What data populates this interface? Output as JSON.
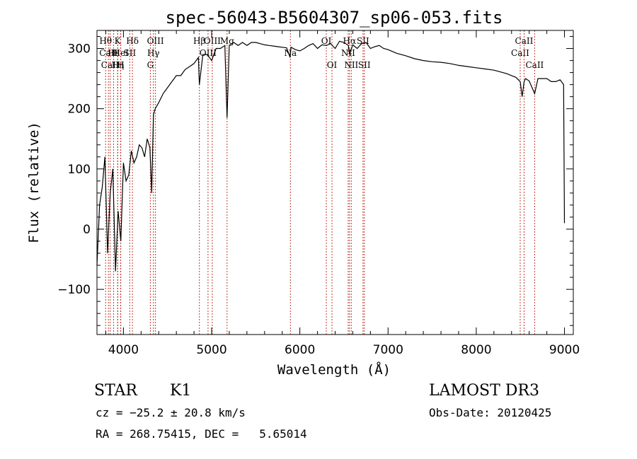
{
  "chart_data": {
    "type": "line",
    "title": "spec-56043-B5604307_sp06-053.fits",
    "xlabel": "Wavelength (Å)",
    "ylabel": "Flux (relative)",
    "xlim": [
      3700,
      9100
    ],
    "ylim": [
      -175,
      330
    ],
    "xticks": [
      4000,
      5000,
      6000,
      7000,
      8000,
      9000
    ],
    "yticks": [
      -100,
      0,
      100,
      200,
      300
    ],
    "series": [
      {
        "name": "flux",
        "x": [
          3700,
          3730,
          3760,
          3790,
          3820,
          3850,
          3880,
          3910,
          3940,
          3970,
          4000,
          4030,
          4060,
          4090,
          4120,
          4150,
          4180,
          4210,
          4240,
          4270,
          4300,
          4320,
          4340,
          4360,
          4400,
          4450,
          4500,
          4550,
          4600,
          4650,
          4700,
          4750,
          4800,
          4850,
          4861,
          4900,
          4950,
          5000,
          5050,
          5100,
          5150,
          5175,
          5200,
          5250,
          5300,
          5350,
          5400,
          5450,
          5500,
          5550,
          5600,
          5650,
          5700,
          5750,
          5800,
          5850,
          5890,
          5900,
          5950,
          6000,
          6050,
          6100,
          6150,
          6200,
          6250,
          6300,
          6350,
          6400,
          6450,
          6500,
          6550,
          6563,
          6600,
          6650,
          6700,
          6750,
          6800,
          6850,
          6900,
          6950,
          7000,
          7100,
          7200,
          7300,
          7400,
          7500,
          7600,
          7700,
          7800,
          7900,
          8000,
          8100,
          8200,
          8300,
          8350,
          8400,
          8450,
          8498,
          8520,
          8542,
          8560,
          8600,
          8662,
          8700,
          8750,
          8800,
          8850,
          8900,
          8950,
          8990,
          9000
        ],
        "y": [
          -60,
          40,
          70,
          120,
          -40,
          60,
          100,
          -70,
          30,
          -20,
          110,
          80,
          90,
          130,
          110,
          120,
          140,
          135,
          120,
          150,
          135,
          60,
          190,
          200,
          210,
          225,
          235,
          245,
          255,
          255,
          265,
          270,
          275,
          285,
          240,
          290,
          290,
          280,
          300,
          300,
          305,
          185,
          305,
          310,
          305,
          310,
          305,
          310,
          310,
          308,
          306,
          305,
          304,
          303,
          302,
          301,
          285,
          302,
          298,
          296,
          300,
          305,
          308,
          300,
          306,
          305,
          308,
          300,
          312,
          310,
          305,
          290,
          306,
          300,
          308,
          310,
          300,
          303,
          305,
          300,
          298,
          292,
          288,
          283,
          280,
          278,
          277,
          275,
          272,
          270,
          268,
          266,
          264,
          260,
          258,
          255,
          252,
          245,
          220,
          245,
          250,
          246,
          225,
          250,
          250,
          250,
          245,
          245,
          248,
          240,
          10
        ]
      }
    ],
    "lines": [
      {
        "name": "Hθ",
        "x": 3798,
        "row": 0
      },
      {
        "name": "CaII",
        "x": 3830,
        "row": 1
      },
      {
        "name": "CaII",
        "x": 3850,
        "row": 2
      },
      {
        "name": "Hε",
        "x": 3889,
        "row": 1
      },
      {
        "name": "K",
        "x": 3934,
        "row": 0
      },
      {
        "name": "Hη",
        "x": 3936,
        "row": 2
      },
      {
        "name": "HeI",
        "x": 3970,
        "row": 1
      },
      {
        "name": "H",
        "x": 3968,
        "row": 2
      },
      {
        "name": "SII",
        "x": 4072,
        "row": 1
      },
      {
        "name": "Hδ",
        "x": 4102,
        "row": 0
      },
      {
        "name": "OIII",
        "x": 4363,
        "row": 0
      },
      {
        "name": "Hγ",
        "x": 4340,
        "row": 1
      },
      {
        "name": "G",
        "x": 4305,
        "row": 2
      },
      {
        "name": "OIII",
        "x": 5007,
        "row": 0
      },
      {
        "name": "OIII",
        "x": 4959,
        "row": 1
      },
      {
        "name": "Hβ",
        "x": 4861,
        "row": 0
      },
      {
        "name": "Mg",
        "x": 5175,
        "row": 0
      },
      {
        "name": "Na",
        "x": 5893,
        "row": 1
      },
      {
        "name": "OI",
        "x": 6300,
        "row": 0
      },
      {
        "name": "OI",
        "x": 6364,
        "row": 2
      },
      {
        "name": "Hα",
        "x": 6563,
        "row": 0
      },
      {
        "name": "NII",
        "x": 6548,
        "row": 1
      },
      {
        "name": "NII",
        "x": 6583,
        "row": 2
      },
      {
        "name": "SII",
        "x": 6716,
        "row": 0
      },
      {
        "name": "SII",
        "x": 6731,
        "row": 2
      },
      {
        "name": "CaII",
        "x": 8498,
        "row": 1
      },
      {
        "name": "CaII",
        "x": 8542,
        "row": 0
      },
      {
        "name": "CaII",
        "x": 8662,
        "row": 2
      }
    ]
  },
  "info": {
    "object_class": "STAR",
    "subclass": "K1",
    "survey": "LAMOST DR3",
    "redshift": "cz = −25.2 ± 20.8 km/s",
    "obs_date": "Obs-Date: 20120425",
    "coords": "RA = 268.75415, DEC =   5.65014"
  },
  "colors": {
    "line_marker": "#c0392b",
    "spectrum": "#000000",
    "frame": "#000000"
  }
}
